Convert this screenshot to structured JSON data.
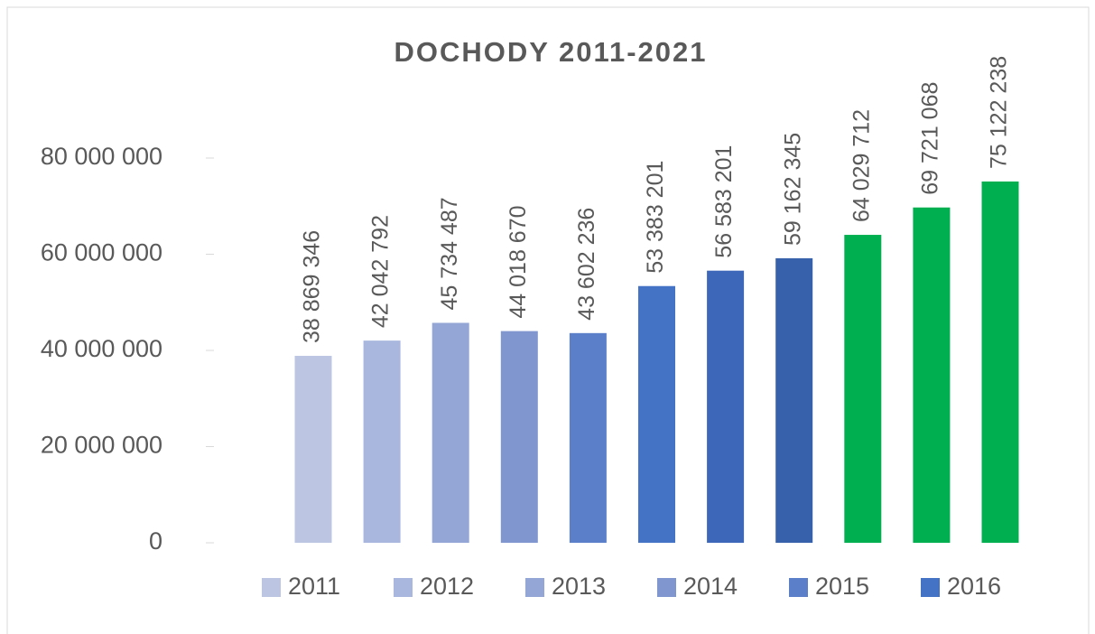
{
  "chart_data": {
    "type": "bar",
    "title": "DOCHODY 2011-2021",
    "series": [
      {
        "name": "2011",
        "color": "#bcc6e3",
        "values": [
          38869346
        ],
        "value_labels": [
          "38 869 346"
        ]
      },
      {
        "name": "2012",
        "color": "#a9b7de",
        "values": [
          42042792
        ],
        "value_labels": [
          "42 042 792"
        ]
      },
      {
        "name": "2013",
        "color": "#94a6d6",
        "values": [
          45734487
        ],
        "value_labels": [
          "45 734 487"
        ]
      },
      {
        "name": "2014",
        "color": "#7f96cf",
        "values": [
          44018670
        ],
        "value_labels": [
          "44 018 670"
        ]
      },
      {
        "name": "2015",
        "color": "#5b7fc9",
        "values": [
          43602236
        ],
        "value_labels": [
          "43 602 236"
        ]
      },
      {
        "name": "2016",
        "color": "#4472c4",
        "values": [
          53383201
        ],
        "value_labels": [
          "53 383 201"
        ]
      },
      {
        "name": null,
        "color": "#3d68b9",
        "values": [
          56583201
        ],
        "value_labels": [
          "56 583 201"
        ]
      },
      {
        "name": null,
        "color": "#3761ab",
        "values": [
          59162345
        ],
        "value_labels": [
          "59 162 345"
        ]
      },
      {
        "name": null,
        "color": "#00b050",
        "values": [
          64029712
        ],
        "value_labels": [
          "64 029 712"
        ]
      },
      {
        "name": null,
        "color": "#00b050",
        "values": [
          69721068
        ],
        "value_labels": [
          "69 721 068"
        ]
      },
      {
        "name": null,
        "color": "#00b050",
        "values": [
          75122238
        ],
        "value_labels": [
          "75 122 238"
        ]
      }
    ],
    "ylim": [
      0,
      80000000
    ],
    "yticks": [
      0,
      {
        "value": 20000000,
        "label": "20 000 000"
      },
      {
        "value": 40000000,
        "label": "40 000 000"
      },
      {
        "value": 60000000,
        "label": "60 000 000"
      },
      {
        "value": 80000000,
        "label": "80 000 000"
      }
    ],
    "legend": "bottom"
  }
}
